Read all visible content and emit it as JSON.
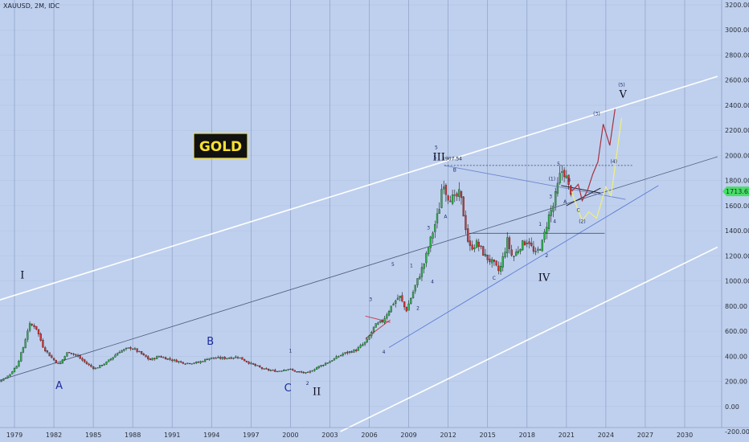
{
  "symbol": "XAUUSD, 2M, IDC",
  "badge": "GOLD",
  "price_tag": "1713.62",
  "colors": {
    "background": "#bfd0ee",
    "grid": "#8c9fc4",
    "up": "#2bb54a",
    "down": "#d43232",
    "channel": "#ffffff",
    "trend": "#4a5878",
    "wave_red": "#a63241",
    "wave_yellow": "#f0f078",
    "price_tag_bg": "#4bdc6a"
  },
  "chart_data": {
    "type": "candlestick",
    "title": "",
    "xlabel": "",
    "ylabel": "",
    "x_range": [
      1977.0,
      2032.5
    ],
    "ylim": [
      -200,
      3200
    ],
    "x_ticks": [
      {
        "x": 1979,
        "label": "1979"
      },
      {
        "x": 1982,
        "label": "1982"
      },
      {
        "x": 1985,
        "label": "1985"
      },
      {
        "x": 1988,
        "label": "1988"
      },
      {
        "x": 1991,
        "label": "1991"
      },
      {
        "x": 1994,
        "label": "1994"
      },
      {
        "x": 1997,
        "label": "1997"
      },
      {
        "x": 2000,
        "label": "2000"
      },
      {
        "x": 2003,
        "label": "2003"
      },
      {
        "x": 2006,
        "label": "2006"
      },
      {
        "x": 2009,
        "label": "2009"
      },
      {
        "x": 2012,
        "label": "2012"
      },
      {
        "x": 2015,
        "label": "2015"
      },
      {
        "x": 2018,
        "label": "2018"
      },
      {
        "x": 2021,
        "label": "2021"
      },
      {
        "x": 2024,
        "label": "2024"
      },
      {
        "x": 2027,
        "label": "2027"
      },
      {
        "x": 2030,
        "label": "2030"
      }
    ],
    "y_ticks": [
      {
        "y": 3200,
        "label": "3200.00"
      },
      {
        "y": 3000,
        "label": "3000.00"
      },
      {
        "y": 2800,
        "label": "2800.00"
      },
      {
        "y": 2600,
        "label": "2600.00"
      },
      {
        "y": 2400,
        "label": "2400.00"
      },
      {
        "y": 2200,
        "label": "2200.00"
      },
      {
        "y": 2000,
        "label": "2000.00"
      },
      {
        "y": 1800,
        "label": "1800.00"
      },
      {
        "y": 1600,
        "label": "1600.00"
      },
      {
        "y": 1400,
        "label": "1400.00"
      },
      {
        "y": 1200,
        "label": "1200.00"
      },
      {
        "y": 1000,
        "label": "1000.00"
      },
      {
        "y": 800,
        "label": "800.00"
      },
      {
        "y": 600,
        "label": "600.00"
      },
      {
        "y": 400,
        "label": "400.00"
      },
      {
        "y": 200,
        "label": "200.00"
      },
      {
        "y": 0,
        "label": "0.00"
      },
      {
        "y": -200,
        "label": "-200.00"
      }
    ],
    "grid": true,
    "close_anchors": [
      [
        1977.0,
        150
      ],
      [
        1978.0,
        210
      ],
      [
        1978.6,
        250
      ],
      [
        1979.2,
        330
      ],
      [
        1979.7,
        480
      ],
      [
        1980.1,
        650
      ],
      [
        1980.6,
        640
      ],
      [
        1981.2,
        470
      ],
      [
        1981.8,
        390
      ],
      [
        1982.4,
        330
      ],
      [
        1982.7,
        380
      ],
      [
        1983.1,
        440
      ],
      [
        1983.8,
        400
      ],
      [
        1984.5,
        340
      ],
      [
        1985.1,
        300
      ],
      [
        1986.0,
        350
      ],
      [
        1987.0,
        440
      ],
      [
        1987.9,
        470
      ],
      [
        1988.5,
        430
      ],
      [
        1989.3,
        370
      ],
      [
        1990.0,
        400
      ],
      [
        1991.0,
        370
      ],
      [
        1992.0,
        345
      ],
      [
        1993.0,
        350
      ],
      [
        1993.8,
        385
      ],
      [
        1995.0,
        385
      ],
      [
        1996.0,
        395
      ],
      [
        1997.0,
        340
      ],
      [
        1998.0,
        295
      ],
      [
        1999.0,
        280
      ],
      [
        1999.8,
        300
      ],
      [
        2000.5,
        275
      ],
      [
        2001.3,
        265
      ],
      [
        2002.0,
        310
      ],
      [
        2003.0,
        360
      ],
      [
        2004.0,
        420
      ],
      [
        2005.0,
        450
      ],
      [
        2005.8,
        520
      ],
      [
        2006.4,
        640
      ],
      [
        2007.0,
        680
      ],
      [
        2007.8,
        820
      ],
      [
        2008.3,
        880
      ],
      [
        2008.8,
        760
      ],
      [
        2009.5,
        960
      ],
      [
        2010.2,
        1150
      ],
      [
        2010.8,
        1380
      ],
      [
        2011.3,
        1560
      ],
      [
        2011.6,
        1820
      ],
      [
        2011.9,
        1680
      ],
      [
        2012.5,
        1650
      ],
      [
        2012.9,
        1700
      ],
      [
        2013.3,
        1450
      ],
      [
        2013.6,
        1260
      ],
      [
        2014.2,
        1300
      ],
      [
        2014.8,
        1200
      ],
      [
        2015.5,
        1130
      ],
      [
        2015.9,
        1070
      ],
      [
        2016.5,
        1320
      ],
      [
        2016.9,
        1180
      ],
      [
        2017.5,
        1280
      ],
      [
        2018.1,
        1330
      ],
      [
        2018.6,
        1200
      ],
      [
        2019.2,
        1310
      ],
      [
        2019.6,
        1500
      ],
      [
        2020.0,
        1600
      ],
      [
        2020.6,
        1880
      ],
      [
        2020.9,
        1860
      ],
      [
        2021.2,
        1730
      ],
      [
        2021.4,
        1713
      ]
    ],
    "projections": {
      "red_path": [
        [
          2021.4,
          1713
        ],
        [
          2021.9,
          1770
        ],
        [
          2022.2,
          1640
        ],
        [
          2022.6,
          1720
        ],
        [
          2023.0,
          1850
        ],
        [
          2023.4,
          1950
        ],
        [
          2023.8,
          2250
        ],
        [
          2024.3,
          2080
        ],
        [
          2024.7,
          2370
        ]
      ],
      "yellow_path": [
        [
          2021.4,
          1713
        ],
        [
          2021.7,
          1620
        ],
        [
          2022.2,
          1480
        ],
        [
          2022.7,
          1550
        ],
        [
          2023.3,
          1500
        ],
        [
          2024.0,
          1750
        ],
        [
          2024.4,
          1680
        ],
        [
          2025.2,
          2300
        ]
      ]
    },
    "channels": {
      "upper_parallel": [
        [
          1977.0,
          820
        ],
        [
          2032.5,
          2630
        ]
      ],
      "lower_parallel": [
        [
          2003.8,
          -200
        ],
        [
          2032.5,
          1270
        ]
      ],
      "mid_trendline": [
        [
          1977.0,
          180
        ],
        [
          2032.5,
          1990
        ]
      ],
      "support_trendline": [
        [
          2007.5,
          470
        ],
        [
          2028.0,
          1760
        ]
      ],
      "resistance_2011": [
        [
          2011.7,
          1920
        ],
        [
          2025.5,
          1650
        ]
      ],
      "level_1920": [
        [
          2011.7,
          1920
        ],
        [
          2026.0,
          1920
        ]
      ],
      "level_1380": [
        [
          2013.6,
          1380
        ],
        [
          2023.9,
          1380
        ]
      ],
      "triangle_top": [
        [
          2020.6,
          1760
        ],
        [
          2023.6,
          1700
        ]
      ],
      "triangle_bottom": [
        [
          2021.0,
          1600
        ],
        [
          2023.6,
          1740
        ]
      ],
      "red_tri_top": [
        [
          2005.7,
          720
        ],
        [
          2007.6,
          670
        ]
      ],
      "red_tri_bottom": [
        [
          2005.7,
          540
        ],
        [
          2007.6,
          690
        ]
      ]
    },
    "annotations": [
      {
        "text": "I",
        "x": 1979.6,
        "y": 1020,
        "style": "wave-big"
      },
      {
        "text": "II",
        "x": 2002.0,
        "y": 90,
        "style": "wave-big"
      },
      {
        "text": "III",
        "x": 2011.3,
        "y": 1960,
        "style": "wave-big"
      },
      {
        "text": "IV",
        "x": 2019.3,
        "y": 1000,
        "style": "wave-big"
      },
      {
        "text": "V",
        "x": 2025.3,
        "y": 2460,
        "style": "wave-big"
      },
      {
        "text": "A",
        "x": 1982.4,
        "y": 140,
        "style": "wave-abc"
      },
      {
        "text": "B",
        "x": 1993.9,
        "y": 490,
        "style": "wave-abc"
      },
      {
        "text": "C",
        "x": 1999.8,
        "y": 120,
        "style": "wave-abc"
      },
      {
        "text": "1",
        "x": 2000.0,
        "y": 430,
        "style": "wave-small"
      },
      {
        "text": "2",
        "x": 2001.3,
        "y": 170,
        "style": "wave-small"
      },
      {
        "text": "3",
        "x": 2006.1,
        "y": 840,
        "style": "wave-small"
      },
      {
        "text": "4",
        "x": 2007.1,
        "y": 420,
        "style": "wave-small"
      },
      {
        "text": "5",
        "x": 2007.8,
        "y": 1120,
        "style": "wave-small"
      },
      {
        "text": "1",
        "x": 2009.2,
        "y": 1110,
        "style": "wave-small"
      },
      {
        "text": "2",
        "x": 2009.7,
        "y": 770,
        "style": "wave-small"
      },
      {
        "text": "3",
        "x": 2010.5,
        "y": 1410,
        "style": "wave-small"
      },
      {
        "text": "4",
        "x": 2010.8,
        "y": 980,
        "style": "wave-small"
      },
      {
        "text": "5",
        "x": 2011.1,
        "y": 2050,
        "style": "wave-small"
      },
      {
        "text": "B",
        "x": 2012.5,
        "y": 1870,
        "style": "wave-small"
      },
      {
        "text": "A",
        "x": 2011.8,
        "y": 1500,
        "style": "wave-small"
      },
      {
        "text": "C",
        "x": 2015.5,
        "y": 1010,
        "style": "wave-small"
      },
      {
        "text": "1",
        "x": 2019.0,
        "y": 1440,
        "style": "wave-small"
      },
      {
        "text": "2",
        "x": 2019.5,
        "y": 1190,
        "style": "wave-small"
      },
      {
        "text": "3",
        "x": 2019.8,
        "y": 1660,
        "style": "wave-small"
      },
      {
        "text": "4",
        "x": 2020.1,
        "y": 1460,
        "style": "wave-small"
      },
      {
        "text": "5",
        "x": 2020.4,
        "y": 1920,
        "style": "wave-small"
      },
      {
        "text": "(1)",
        "x": 2019.9,
        "y": 1800,
        "style": "wave-small"
      },
      {
        "text": "(2)",
        "x": 2022.2,
        "y": 1460,
        "style": "wave-small"
      },
      {
        "text": "(3)",
        "x": 2023.3,
        "y": 2320,
        "style": "wave-small"
      },
      {
        "text": "(4)",
        "x": 2024.6,
        "y": 1940,
        "style": "wave-small"
      },
      {
        "text": "(5)",
        "x": 2025.2,
        "y": 2550,
        "style": "wave-small"
      },
      {
        "text": "B",
        "x": 2021.2,
        "y": 1790,
        "style": "wave-small"
      },
      {
        "text": "A",
        "x": 2020.9,
        "y": 1620,
        "style": "wave-small"
      },
      {
        "text": "C",
        "x": 2021.9,
        "y": 1550,
        "style": "wave-small"
      },
      {
        "text": "1907.54",
        "x": 2012.3,
        "y": 1960,
        "style": "peak-label"
      },
      {
        "text": "5",
        "x": 2011.0,
        "y": 1970,
        "style": "wave-small"
      }
    ]
  }
}
